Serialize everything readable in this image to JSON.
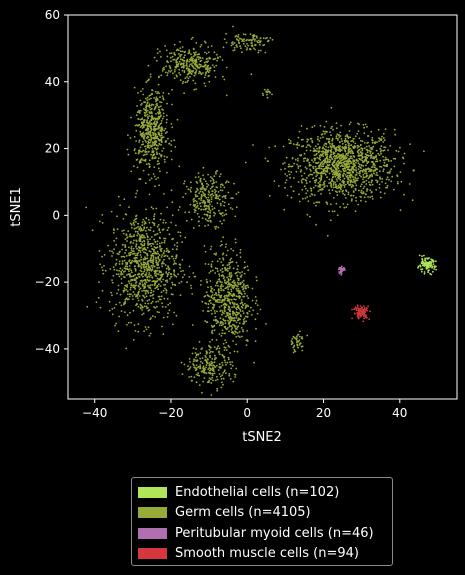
{
  "chart_data": {
    "type": "scatter",
    "title": "",
    "xlabel": "tSNE2",
    "ylabel": "tSNE1",
    "xlim": [
      -47,
      55
    ],
    "ylim": [
      -55,
      60
    ],
    "xticks": [
      -40,
      -20,
      0,
      20,
      40
    ],
    "yticks": [
      -40,
      -20,
      0,
      20,
      40,
      60
    ],
    "xtick_labels": [
      "−40",
      "−20",
      "0",
      "20",
      "40"
    ],
    "ytick_labels": [
      "−40",
      "−20",
      "0",
      "20",
      "40",
      "60"
    ],
    "grid": false,
    "legend_position": "below",
    "series": [
      {
        "name": "Endothelial cells (n=102)",
        "color": "#b2e65a",
        "count": 102,
        "clusters": [
          {
            "cx": 47,
            "cy": -15,
            "sx": 1.6,
            "sy": 1.4,
            "n": 102
          }
        ]
      },
      {
        "name": "Germ cells (n=4105)",
        "color": "#98ab3a",
        "count": 4105,
        "clusters": [
          {
            "cx": 25,
            "cy": 15,
            "sx": 9,
            "sy": 7,
            "n": 1200
          },
          {
            "cx": -27,
            "cy": -15,
            "sx": 6,
            "sy": 11,
            "n": 900
          },
          {
            "cx": -5,
            "cy": -25,
            "sx": 4,
            "sy": 10,
            "n": 600
          },
          {
            "cx": -25,
            "cy": 25,
            "sx": 3,
            "sy": 8,
            "n": 500
          },
          {
            "cx": -15,
            "cy": 45,
            "sx": 5,
            "sy": 4,
            "n": 300
          },
          {
            "cx": -10,
            "cy": 5,
            "sx": 4,
            "sy": 5,
            "n": 250
          },
          {
            "cx": -10,
            "cy": -45,
            "sx": 4,
            "sy": 4,
            "n": 200
          },
          {
            "cx": 0,
            "cy": 52,
            "sx": 4,
            "sy": 2,
            "n": 100
          },
          {
            "cx": 13,
            "cy": -38,
            "sx": 1.5,
            "sy": 2,
            "n": 40
          },
          {
            "cx": 5,
            "cy": 37,
            "sx": 1,
            "sy": 1,
            "n": 15
          }
        ]
      },
      {
        "name": "Peritubular myoid cells (n=46)",
        "color": "#b06fb0",
        "count": 46,
        "clusters": [
          {
            "cx": 24.8,
            "cy": -16.3,
            "sx": 0.5,
            "sy": 0.6,
            "n": 46
          }
        ]
      },
      {
        "name": "Smooth muscle cells (n=94)",
        "color": "#d4373e",
        "count": 94,
        "clusters": [
          {
            "cx": 30,
            "cy": -29,
            "sx": 1.4,
            "sy": 1.4,
            "n": 94
          }
        ]
      }
    ]
  }
}
